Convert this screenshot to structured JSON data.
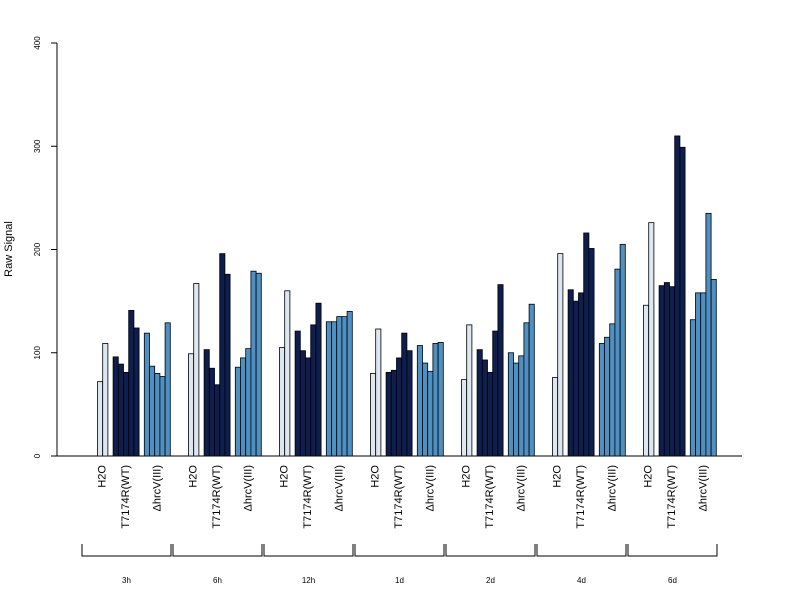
{
  "chart_data": {
    "type": "bar",
    "ylabel": "Raw Signal",
    "ylim": [
      0,
      400
    ],
    "yticks": [
      "0",
      "100",
      "200",
      "300",
      "400"
    ],
    "grid": false,
    "legend": "none",
    "colors": {
      "H2O": "#dde7f2",
      "T7174R(WT)": "#0e1e4e",
      "ΔhrcV(III)": "#4f90c2"
    },
    "condition_labels": [
      "H2O",
      "T7174R(WT)",
      "ΔhrcV(III)"
    ],
    "timepoints": [
      {
        "label": "3h",
        "H2O": [
          72,
          109
        ],
        "T7174R(WT)": [
          96,
          89,
          81,
          141,
          124
        ],
        "ΔhrcV(III)": [
          119,
          87,
          80,
          77,
          129
        ]
      },
      {
        "label": "6h",
        "H2O": [
          99,
          167
        ],
        "T7174R(WT)": [
          103,
          85,
          69,
          196,
          176
        ],
        "ΔhrcV(III)": [
          86,
          95,
          104,
          179,
          177
        ]
      },
      {
        "label": "12h",
        "H2O": [
          105,
          160
        ],
        "T7174R(WT)": [
          121,
          102,
          95,
          127,
          148
        ],
        "ΔhrcV(III)": [
          130,
          130,
          135,
          135,
          140
        ]
      },
      {
        "label": "1d",
        "H2O": [
          80,
          123
        ],
        "T7174R(WT)": [
          81,
          83,
          95,
          119,
          102
        ],
        "ΔhrcV(III)": [
          107,
          90,
          82,
          109,
          110
        ]
      },
      {
        "label": "2d",
        "H2O": [
          74,
          127
        ],
        "T7174R(WT)": [
          103,
          93,
          81,
          121,
          166
        ],
        "ΔhrcV(III)": [
          100,
          90,
          97,
          129,
          147
        ]
      },
      {
        "label": "4d",
        "H2O": [
          76,
          196
        ],
        "T7174R(WT)": [
          161,
          150,
          158,
          216,
          201
        ],
        "ΔhrcV(III)": [
          109,
          115,
          128,
          181,
          205
        ]
      },
      {
        "label": "6d",
        "H2O": [
          146,
          226
        ],
        "T7174R(WT)": [
          165,
          168,
          164,
          310,
          299
        ],
        "ΔhrcV(III)": [
          132,
          158,
          158,
          235,
          171
        ]
      }
    ]
  }
}
